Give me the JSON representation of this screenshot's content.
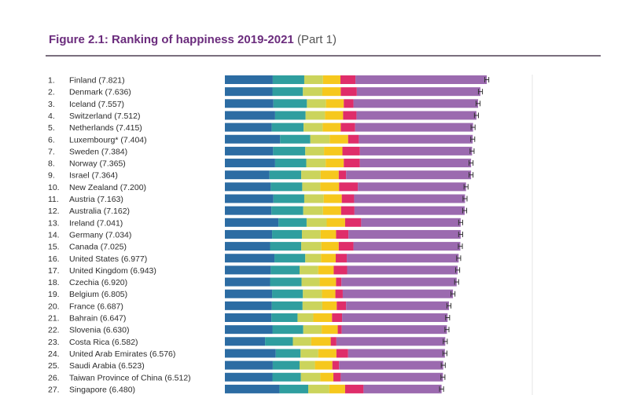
{
  "figure": {
    "title": "Figure 2.1: Ranking of happiness 2019-2021",
    "part": "(Part 1)"
  },
  "colors": {
    "segments": [
      "#2c6ca3",
      "#2f9e9f",
      "#cbd45c",
      "#f6c81d",
      "#df2d6a",
      "#9b6aaf"
    ],
    "error_bar": "#333333",
    "gridline": "#e6e6e6",
    "title": "#6b2c7d"
  },
  "chart_data": {
    "type": "bar",
    "orientation": "horizontal",
    "stacked": true,
    "legend": "none",
    "xlim": [
      0,
      8
    ],
    "categories": [
      {
        "rank": "1.",
        "label": "Finland (7.821)",
        "value": 7.821
      },
      {
        "rank": "2.",
        "label": "Denmark (7.636)",
        "value": 7.636
      },
      {
        "rank": "3.",
        "label": "Iceland (7.557)",
        "value": 7.557
      },
      {
        "rank": "4.",
        "label": "Switzerland (7.512)",
        "value": 7.512
      },
      {
        "rank": "5.",
        "label": "Netherlands (7.415)",
        "value": 7.415
      },
      {
        "rank": "6.",
        "label": "Luxembourg* (7.404)",
        "value": 7.404
      },
      {
        "rank": "7.",
        "label": "Sweden (7.384)",
        "value": 7.384
      },
      {
        "rank": "8.",
        "label": "Norway (7.365)",
        "value": 7.365
      },
      {
        "rank": "9.",
        "label": "Israel (7.364)",
        "value": 7.364
      },
      {
        "rank": "10.",
        "label": "New Zealand (7.200)",
        "value": 7.2
      },
      {
        "rank": "11.",
        "label": "Austria (7.163)",
        "value": 7.163
      },
      {
        "rank": "12.",
        "label": "Australia (7.162)",
        "value": 7.162
      },
      {
        "rank": "13.",
        "label": "Ireland (7.041)",
        "value": 7.041
      },
      {
        "rank": "14.",
        "label": "Germany (7.034)",
        "value": 7.034
      },
      {
        "rank": "15.",
        "label": "Canada (7.025)",
        "value": 7.025
      },
      {
        "rank": "16.",
        "label": "United States (6.977)",
        "value": 6.977
      },
      {
        "rank": "17.",
        "label": "United Kingdom (6.943)",
        "value": 6.943
      },
      {
        "rank": "18.",
        "label": "Czechia (6.920)",
        "value": 6.92
      },
      {
        "rank": "19.",
        "label": "Belgium (6.805)",
        "value": 6.805
      },
      {
        "rank": "20.",
        "label": "France (6.687)",
        "value": 6.687
      },
      {
        "rank": "21.",
        "label": "Bahrain (6.647)",
        "value": 6.647
      },
      {
        "rank": "22.",
        "label": "Slovenia (6.630)",
        "value": 6.63
      },
      {
        "rank": "23.",
        "label": "Costa Rica (6.582)",
        "value": 6.582
      },
      {
        "rank": "24.",
        "label": "United Arab Emirates (6.576)",
        "value": 6.576
      },
      {
        "rank": "25.",
        "label": "Saudi Arabia (6.523)",
        "value": 6.523
      },
      {
        "rank": "26.",
        "label": "Taiwan Province of China (6.512)",
        "value": 6.512
      },
      {
        "rank": "27.",
        "label": "Singapore (6.480)",
        "value": 6.48
      }
    ],
    "segments": [
      [
        1.43,
        0.94,
        0.56,
        0.52,
        0.45,
        3.92
      ],
      [
        1.42,
        0.91,
        0.58,
        0.55,
        0.48,
        3.69
      ],
      [
        1.45,
        1.0,
        0.57,
        0.53,
        0.29,
        3.72
      ],
      [
        1.5,
        0.91,
        0.58,
        0.54,
        0.4,
        3.58
      ],
      [
        1.4,
        0.95,
        0.57,
        0.54,
        0.43,
        3.52
      ],
      [
        1.65,
        0.9,
        0.58,
        0.55,
        0.32,
        3.4
      ],
      [
        1.44,
        0.96,
        0.56,
        0.55,
        0.52,
        3.35
      ],
      [
        1.5,
        0.93,
        0.58,
        0.54,
        0.48,
        3.32
      ],
      [
        1.33,
        0.95,
        0.58,
        0.54,
        0.22,
        3.73
      ],
      [
        1.37,
        0.94,
        0.54,
        0.56,
        0.56,
        3.23
      ],
      [
        1.45,
        0.92,
        0.58,
        0.54,
        0.37,
        3.31
      ],
      [
        1.39,
        0.95,
        0.59,
        0.54,
        0.4,
        3.29
      ],
      [
        1.6,
        0.84,
        0.6,
        0.55,
        0.48,
        2.97
      ],
      [
        1.41,
        0.89,
        0.56,
        0.46,
        0.37,
        3.35
      ],
      [
        1.35,
        0.93,
        0.6,
        0.52,
        0.44,
        3.19
      ],
      [
        1.48,
        0.92,
        0.47,
        0.44,
        0.33,
        3.34
      ],
      [
        1.37,
        0.86,
        0.56,
        0.46,
        0.4,
        3.3
      ],
      [
        1.35,
        0.94,
        0.54,
        0.49,
        0.16,
        3.44
      ],
      [
        1.41,
        0.92,
        0.57,
        0.4,
        0.22,
        3.29
      ],
      [
        1.4,
        0.92,
        0.59,
        0.43,
        0.28,
        3.07
      ],
      [
        1.39,
        0.78,
        0.47,
        0.56,
        0.3,
        3.15
      ],
      [
        1.42,
        0.92,
        0.55,
        0.48,
        0.12,
        3.14
      ],
      [
        1.2,
        0.83,
        0.55,
        0.58,
        0.17,
        3.25
      ],
      [
        1.52,
        0.74,
        0.53,
        0.54,
        0.35,
        2.89
      ],
      [
        1.43,
        0.8,
        0.46,
        0.52,
        0.2,
        3.11
      ],
      [
        1.42,
        0.85,
        0.58,
        0.39,
        0.22,
        3.05
      ],
      [
        1.63,
        0.86,
        0.63,
        0.47,
        0.55,
        2.33
      ]
    ],
    "error_halfwidth": 0.06
  }
}
